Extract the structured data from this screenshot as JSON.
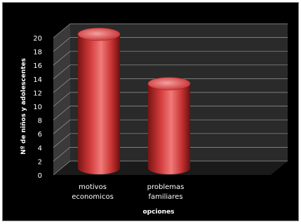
{
  "chart_data": {
    "type": "bar",
    "style": "3d-cylinder",
    "categories": [
      [
        "motivos",
        "economicos"
      ],
      [
        "problemas",
        "familiares"
      ]
    ],
    "values": [
      19.5,
      12.3
    ],
    "ylim": [
      0,
      20
    ],
    "yticks": [
      "0",
      "2",
      "4",
      "6",
      "8",
      "10",
      "12",
      "14",
      "16",
      "18",
      "20"
    ],
    "xlabel": "opciones",
    "ylabel": "Nº de niños y adolescentes",
    "grid": true,
    "colors": {
      "background": "#000000",
      "wall": "#2a2a2a",
      "floor": "#1a1a1a",
      "grid": "#9a9a9a",
      "bar": "#d43c3c",
      "bar_light": "#f07a7a",
      "bar_dark": "#7a1414",
      "text": "#ffffff"
    }
  }
}
